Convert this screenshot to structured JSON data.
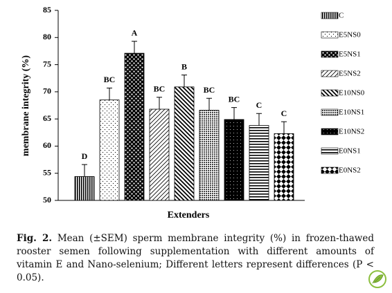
{
  "chart_data": {
    "type": "bar",
    "categories": [
      "C",
      "E5NS0",
      "E5NS1",
      "E5NS2",
      "E10NS0",
      "E10NS1",
      "E10NS2",
      "E0NS1",
      "E0NS2"
    ],
    "values": [
      54.4,
      68.5,
      77.1,
      66.8,
      70.9,
      66.6,
      64.9,
      63.8,
      62.3
    ],
    "errors": [
      2.2,
      2.2,
      2.2,
      2.2,
      2.2,
      2.2,
      2.2,
      2.2,
      2.2
    ],
    "letters": [
      "D",
      "BC",
      "A",
      "BC",
      "B",
      "BC",
      "BC",
      "C",
      "C"
    ],
    "y_label": "membrane integrity (%)",
    "x_label": "Extenders",
    "ylim": [
      50,
      85
    ],
    "yticks": [
      50,
      55,
      60,
      65,
      70,
      75,
      80,
      85
    ],
    "legend": "right"
  },
  "caption": {
    "label": "Fig. 2.",
    "text": "Mean (±SEM) sperm membrane integrity (%) in frozen-thawed rooster semen following supplementation with different amounts of vitamin E and Nano-selenium; Different letters represent differences (P < 0.05)."
  }
}
